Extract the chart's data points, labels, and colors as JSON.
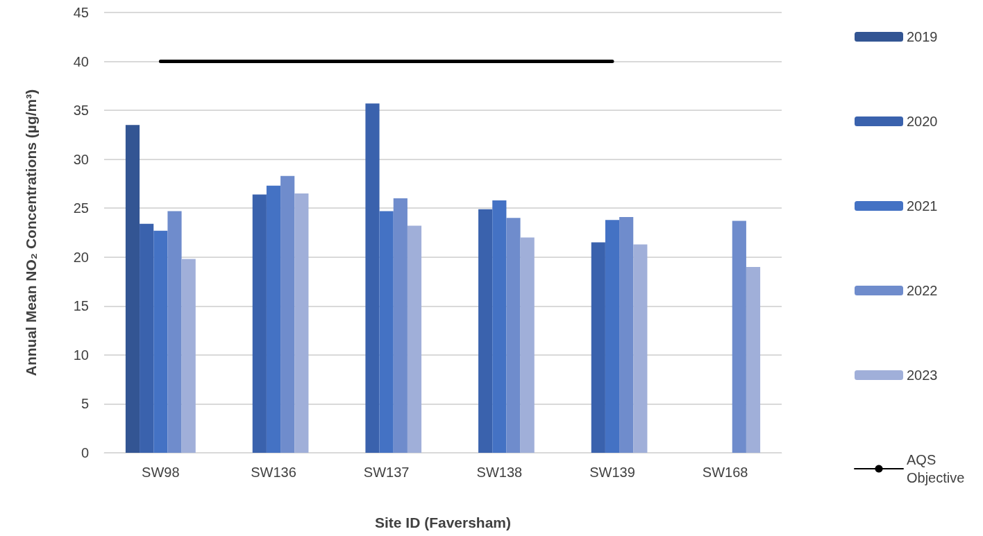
{
  "chart_data": {
    "type": "bar",
    "xlabel": "Site ID (Faversham)",
    "ylabel": "Annual Mean NO₂ Concentrations (µg/m³)",
    "categories": [
      "SW98",
      "SW136",
      "SW137",
      "SW138",
      "SW139",
      "SW168"
    ],
    "series": [
      {
        "name": "2019",
        "color": "#335593",
        "values": [
          33.5,
          null,
          null,
          null,
          null,
          null
        ]
      },
      {
        "name": "2020",
        "color": "#3a62ad",
        "values": [
          23.4,
          26.4,
          35.7,
          24.9,
          21.5,
          null
        ]
      },
      {
        "name": "2021",
        "color": "#4472c4",
        "values": [
          22.7,
          27.3,
          24.7,
          25.8,
          23.8,
          null
        ]
      },
      {
        "name": "2022",
        "color": "#6f8ccc",
        "values": [
          24.7,
          28.3,
          26.0,
          24.0,
          24.1,
          23.7
        ]
      },
      {
        "name": "2023",
        "color": "#a0afd9",
        "values": [
          19.8,
          26.5,
          23.2,
          22.0,
          21.3,
          19.0
        ]
      },
      {
        "name": "AQS Objective",
        "type": "line",
        "color": "#000000",
        "marker": "none",
        "values": [
          40,
          40,
          40,
          40,
          40,
          null
        ]
      }
    ],
    "ylim": [
      0,
      45
    ],
    "yticks": [
      0,
      5,
      10,
      15,
      20,
      25,
      30,
      35,
      40,
      45
    ],
    "grid": "y",
    "legend": "right"
  }
}
